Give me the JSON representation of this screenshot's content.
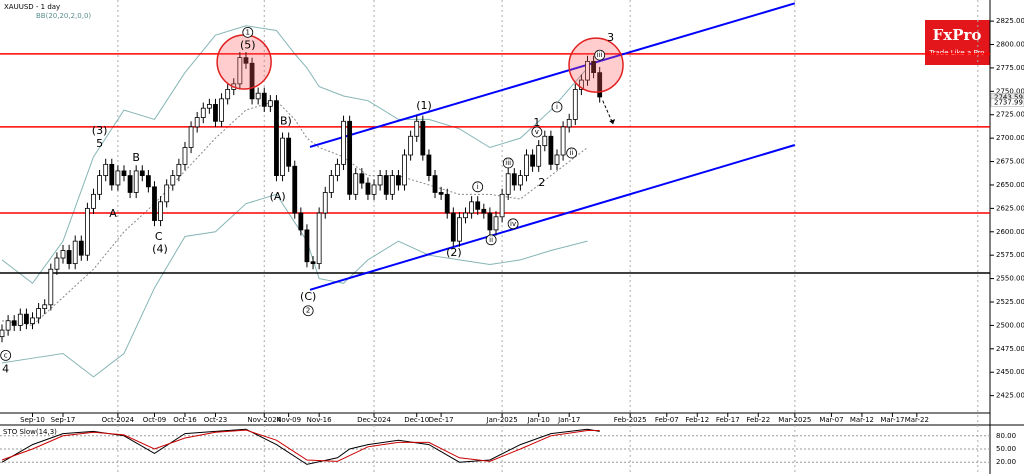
{
  "chart_data": {
    "type": "candlestick",
    "title": "XAUUSD - 1 day",
    "indicator": "BB(20,20,2,0,0)",
    "logo": {
      "name": "FxPro",
      "tagline": "Trade Like a Pro"
    },
    "ohlc": [
      [
        2488,
        2501,
        2482,
        2495
      ],
      [
        2495,
        2511,
        2489,
        2505
      ],
      [
        2505,
        2511,
        2494,
        2500
      ],
      [
        2500,
        2518,
        2494,
        2512
      ],
      [
        2512,
        2518,
        2496,
        2502
      ],
      [
        2502,
        2514,
        2496,
        2508
      ],
      [
        2508,
        2524,
        2502,
        2518
      ],
      [
        2518,
        2528,
        2512,
        2522
      ],
      [
        2522,
        2566,
        2516,
        2560
      ],
      [
        2560,
        2578,
        2554,
        2572
      ],
      [
        2572,
        2586,
        2566,
        2580
      ],
      [
        2580,
        2586,
        2560,
        2566
      ],
      [
        2566,
        2596,
        2560,
        2590
      ],
      [
        2590,
        2596,
        2569,
        2575
      ],
      [
        2575,
        2631,
        2569,
        2625
      ],
      [
        2625,
        2646,
        2619,
        2640
      ],
      [
        2640,
        2666,
        2634,
        2660
      ],
      [
        2660,
        2678,
        2654,
        2672
      ],
      [
        2672,
        2678,
        2644,
        2650
      ],
      [
        2650,
        2671,
        2644,
        2665
      ],
      [
        2665,
        2671,
        2654,
        2660
      ],
      [
        2660,
        2666,
        2636,
        2642
      ],
      [
        2642,
        2671,
        2636,
        2665
      ],
      [
        2665,
        2671,
        2654,
        2660
      ],
      [
        2660,
        2666,
        2642,
        2648
      ],
      [
        2648,
        2654,
        2606,
        2612
      ],
      [
        2612,
        2638,
        2606,
        2632
      ],
      [
        2632,
        2656,
        2626,
        2650
      ],
      [
        2650,
        2666,
        2644,
        2660
      ],
      [
        2660,
        2678,
        2654,
        2672
      ],
      [
        2672,
        2696,
        2666,
        2690
      ],
      [
        2690,
        2718,
        2684,
        2712
      ],
      [
        2712,
        2728,
        2706,
        2722
      ],
      [
        2722,
        2738,
        2716,
        2732
      ],
      [
        2732,
        2742,
        2726,
        2736
      ],
      [
        2736,
        2742,
        2712,
        2718
      ],
      [
        2718,
        2748,
        2712,
        2742
      ],
      [
        2742,
        2758,
        2736,
        2752
      ],
      [
        2752,
        2764,
        2746,
        2758
      ],
      [
        2758,
        2792,
        2752,
        2786
      ],
      [
        2786,
        2792,
        2774,
        2780
      ],
      [
        2780,
        2786,
        2736,
        2742
      ],
      [
        2742,
        2754,
        2736,
        2748
      ],
      [
        2748,
        2754,
        2728,
        2734
      ],
      [
        2734,
        2746,
        2728,
        2740
      ],
      [
        2740,
        2746,
        2654,
        2660
      ],
      [
        2660,
        2706,
        2654,
        2700
      ],
      [
        2700,
        2706,
        2664,
        2670
      ],
      [
        2670,
        2676,
        2614,
        2620
      ],
      [
        2620,
        2626,
        2596,
        2602
      ],
      [
        2602,
        2608,
        2562,
        2568
      ],
      [
        2568,
        2574,
        2560,
        2566
      ],
      [
        2566,
        2626,
        2560,
        2620
      ],
      [
        2620,
        2648,
        2614,
        2642
      ],
      [
        2642,
        2666,
        2636,
        2660
      ],
      [
        2660,
        2678,
        2654,
        2672
      ],
      [
        2672,
        2724,
        2666,
        2718
      ],
      [
        2718,
        2724,
        2634,
        2640
      ],
      [
        2640,
        2668,
        2634,
        2662
      ],
      [
        2662,
        2668,
        2646,
        2652
      ],
      [
        2652,
        2658,
        2634,
        2640
      ],
      [
        2640,
        2656,
        2634,
        2650
      ],
      [
        2650,
        2666,
        2644,
        2660
      ],
      [
        2660,
        2666,
        2634,
        2640
      ],
      [
        2640,
        2666,
        2634,
        2660
      ],
      [
        2660,
        2666,
        2644,
        2650
      ],
      [
        2650,
        2688,
        2644,
        2682
      ],
      [
        2682,
        2708,
        2676,
        2702
      ],
      [
        2702,
        2724,
        2696,
        2718
      ],
      [
        2718,
        2724,
        2676,
        2682
      ],
      [
        2682,
        2688,
        2654,
        2660
      ],
      [
        2660,
        2666,
        2636,
        2642
      ],
      [
        2642,
        2648,
        2634,
        2640
      ],
      [
        2640,
        2646,
        2614,
        2620
      ],
      [
        2620,
        2626,
        2584,
        2590
      ],
      [
        2590,
        2621,
        2584,
        2615
      ],
      [
        2615,
        2626,
        2609,
        2620
      ],
      [
        2620,
        2638,
        2614,
        2632
      ],
      [
        2632,
        2638,
        2618,
        2624
      ],
      [
        2624,
        2630,
        2614,
        2620
      ],
      [
        2620,
        2626,
        2596,
        2602
      ],
      [
        2602,
        2622,
        2596,
        2616
      ],
      [
        2616,
        2646,
        2610,
        2640
      ],
      [
        2640,
        2668,
        2634,
        2662
      ],
      [
        2662,
        2668,
        2644,
        2650
      ],
      [
        2650,
        2666,
        2644,
        2660
      ],
      [
        2660,
        2688,
        2654,
        2682
      ],
      [
        2682,
        2688,
        2664,
        2670
      ],
      [
        2670,
        2698,
        2664,
        2692
      ],
      [
        2692,
        2708,
        2686,
        2702
      ],
      [
        2702,
        2708,
        2666,
        2672
      ],
      [
        2672,
        2688,
        2666,
        2682
      ],
      [
        2682,
        2718,
        2676,
        2712
      ],
      [
        2712,
        2726,
        2706,
        2720
      ],
      [
        2720,
        2758,
        2714,
        2752
      ],
      [
        2752,
        2768,
        2746,
        2762
      ],
      [
        2762,
        2788,
        2756,
        2782
      ],
      [
        2782,
        2788,
        2764,
        2770
      ],
      [
        2770,
        2776,
        2738,
        2744
      ]
    ],
    "up_color": "#ffffff",
    "down_color": "#000000",
    "xlim": [
      -0.33,
      162
    ],
    "xticks": [
      {
        "value": 5,
        "label": "Sep-10"
      },
      {
        "value": 10,
        "label": "Sep-17"
      },
      {
        "value": 19,
        "label": "Oct-2024"
      },
      {
        "value": 25,
        "label": "Oct-09"
      },
      {
        "value": 30,
        "label": "Oct-16"
      },
      {
        "value": 35,
        "label": "Oct-23"
      },
      {
        "value": 43,
        "label": "Nov-2024"
      },
      {
        "value": 47,
        "label": "Nov-09"
      },
      {
        "value": 52,
        "label": "Nov-16"
      },
      {
        "value": 61,
        "label": "Dec-2024"
      },
      {
        "value": 68,
        "label": "Dec-10"
      },
      {
        "value": 72,
        "label": "Dec-17"
      },
      {
        "value": 82,
        "label": "Jan-2025"
      },
      {
        "value": 88,
        "label": "Jan-10"
      },
      {
        "value": 93,
        "label": "Jan-17"
      },
      {
        "value": 103,
        "label": "Feb-2025"
      },
      {
        "value": 109,
        "label": "Feb-07"
      },
      {
        "value": 114,
        "label": "Feb-12"
      },
      {
        "value": 119,
        "label": "Feb-17"
      },
      {
        "value": 124,
        "label": "Feb-22"
      },
      {
        "value": 130,
        "label": "Mar-2025"
      },
      {
        "value": 136,
        "label": "Mar-07"
      },
      {
        "value": 141,
        "label": "Mar-12"
      },
      {
        "value": 146,
        "label": "Mar-17"
      },
      {
        "value": 150,
        "label": "Mar-22"
      }
    ],
    "vgrid": [
      19,
      43,
      61,
      82,
      103,
      130,
      160
    ],
    "ylim": [
      2415,
      2839
    ],
    "yticks": [
      {
        "value": 2825,
        "label": "2825.00"
      },
      {
        "value": 2800,
        "label": "2800.00"
      },
      {
        "value": 2775,
        "label": "2775.00"
      },
      {
        "value": 2750,
        "label": "2750.00"
      },
      {
        "value": 2725,
        "label": "2725.00"
      },
      {
        "value": 2700,
        "label": "2700.00"
      },
      {
        "value": 2675,
        "label": "2675.00"
      },
      {
        "value": 2650,
        "label": "2650.00"
      },
      {
        "value": 2625,
        "label": "2625.00"
      },
      {
        "value": 2600,
        "label": "2600.00"
      },
      {
        "value": 2575,
        "label": "2575.00"
      },
      {
        "value": 2550,
        "label": "2550.00"
      },
      {
        "value": 2525,
        "label": "2525.00"
      },
      {
        "value": 2500,
        "label": "2500.00"
      },
      {
        "value": 2475,
        "label": "2475.00"
      },
      {
        "value": 2450,
        "label": "2450.00"
      },
      {
        "value": 2425,
        "label": "2425.00"
      }
    ],
    "price_tags": [
      {
        "value": 2743.59,
        "label": "2743.59"
      },
      {
        "value": 2737.99,
        "label": "2737.99"
      }
    ],
    "levels": [
      {
        "value": 2790,
        "color": "#ff0000"
      },
      {
        "value": 2712,
        "color": "#ff0000"
      },
      {
        "value": 2620,
        "color": "#ff0000"
      },
      {
        "value": 2556,
        "color": "#000000"
      }
    ],
    "channel": {
      "color": "#0000ff",
      "lines": [
        [
          [
            50.5,
            2690.6
          ],
          [
            130,
            2844
          ]
        ],
        [
          [
            50.5,
            2538
          ],
          [
            130,
            2692.7
          ]
        ]
      ]
    },
    "arrow": [
      [
        98.5,
        2740
      ],
      [
        100.2,
        2715
      ]
    ],
    "highlights": [
      [
        39.7,
        2781.3
      ],
      [
        97.4,
        2778
      ]
    ],
    "bollinger": {
      "color": "#86b5b5",
      "mid_color": "#888888",
      "x": [
        0,
        5,
        10,
        15,
        20,
        25,
        30,
        35,
        40,
        45,
        48,
        50,
        52,
        56,
        60,
        65,
        70,
        75,
        80,
        85,
        90,
        96
      ],
      "upper": [
        2570,
        2545,
        2590,
        2680,
        2730,
        2720,
        2770,
        2810,
        2820,
        2815,
        2790,
        2775,
        2755,
        2745,
        2740,
        2720,
        2720,
        2710,
        2690,
        2700,
        2730,
        2775
      ],
      "lower": [
        2460,
        2465,
        2470,
        2445,
        2470,
        2540,
        2595,
        2600,
        2630,
        2640,
        2610,
        2590,
        2550,
        2545,
        2570,
        2590,
        2575,
        2570,
        2565,
        2570,
        2580,
        2590
      ],
      "mid": [
        2505,
        2500,
        2530,
        2560,
        2600,
        2630,
        2665,
        2700,
        2730,
        2740,
        2720,
        2700,
        2690,
        2680,
        2660,
        2660,
        2650,
        2640,
        2640,
        2635,
        2660,
        2690
      ]
    },
    "annotations": [
      {
        "text": "4",
        "x": 0.6,
        "y": 2452.7
      },
      {
        "text": "c",
        "x": 0.6,
        "y": 2468,
        "circled": true
      },
      {
        "text": "(3)",
        "x": 16,
        "y": 2707.7
      },
      {
        "text": "5",
        "x": 16,
        "y": 2694
      },
      {
        "text": "A",
        "x": 18.2,
        "y": 2619
      },
      {
        "text": "B",
        "x": 22,
        "y": 2679
      },
      {
        "text": "C",
        "x": 25.7,
        "y": 2594.6
      },
      {
        "text": "(4)",
        "x": 25.9,
        "y": 2581
      },
      {
        "text": "1",
        "x": 40.3,
        "y": 2813,
        "circled": true
      },
      {
        "text": "(5)",
        "x": 40.3,
        "y": 2799
      },
      {
        "text": "(B)",
        "x": 46.2,
        "y": 2718
      },
      {
        "text": "(A)",
        "x": 45.2,
        "y": 2637.3
      },
      {
        "text": "(C)",
        "x": 50.2,
        "y": 2530.6
      },
      {
        "text": "2",
        "x": 50.2,
        "y": 2515.7,
        "circled": true
      },
      {
        "text": "(1)",
        "x": 69.2,
        "y": 2734.3
      },
      {
        "text": "i",
        "x": 78,
        "y": 2648,
        "circled": true
      },
      {
        "text": "iv",
        "x": 83.8,
        "y": 2608.5,
        "circled": true
      },
      {
        "text": "ii",
        "x": 80.2,
        "y": 2591.4,
        "circled": true
      },
      {
        "text": "(2)",
        "x": 74.1,
        "y": 2577.5
      },
      {
        "text": "iii",
        "x": 83,
        "y": 2673.5,
        "circled": true
      },
      {
        "text": "1",
        "x": 87.7,
        "y": 2716
      },
      {
        "text": "v",
        "x": 87.7,
        "y": 2706.6,
        "circled": true
      },
      {
        "text": "2",
        "x": 88.5,
        "y": 2652.2
      },
      {
        "text": "i",
        "x": 91,
        "y": 2733.3,
        "circled": true
      },
      {
        "text": "ii",
        "x": 93.4,
        "y": 2684.2,
        "circled": true
      },
      {
        "text": "iii",
        "x": 98,
        "y": 2788.7,
        "circled": true
      },
      {
        "text": "3",
        "x": 99.8,
        "y": 2806.9
      }
    ],
    "stochastic": {
      "label": "STO Slow(14,3)",
      "ylim": [
        0,
        100
      ],
      "yticks": [
        {
          "value": 80,
          "label": "80.00"
        },
        {
          "value": 50,
          "label": "50.00"
        },
        {
          "value": 20,
          "label": "20.00"
        }
      ],
      "x": [
        0,
        5,
        10,
        15,
        20,
        25,
        30,
        35,
        40,
        45,
        50,
        55,
        57,
        60,
        65,
        70,
        75,
        80,
        85,
        90,
        96,
        98
      ],
      "k": [
        20,
        60,
        85,
        90,
        80,
        40,
        85,
        90,
        95,
        60,
        15,
        30,
        50,
        60,
        70,
        60,
        20,
        25,
        60,
        85,
        95,
        90
      ],
      "d": [
        25,
        50,
        80,
        88,
        82,
        50,
        75,
        88,
        93,
        70,
        25,
        22,
        35,
        55,
        65,
        65,
        30,
        22,
        50,
        80,
        92,
        92
      ],
      "k_color": "#000000",
      "d_color": "#cc0000"
    }
  }
}
